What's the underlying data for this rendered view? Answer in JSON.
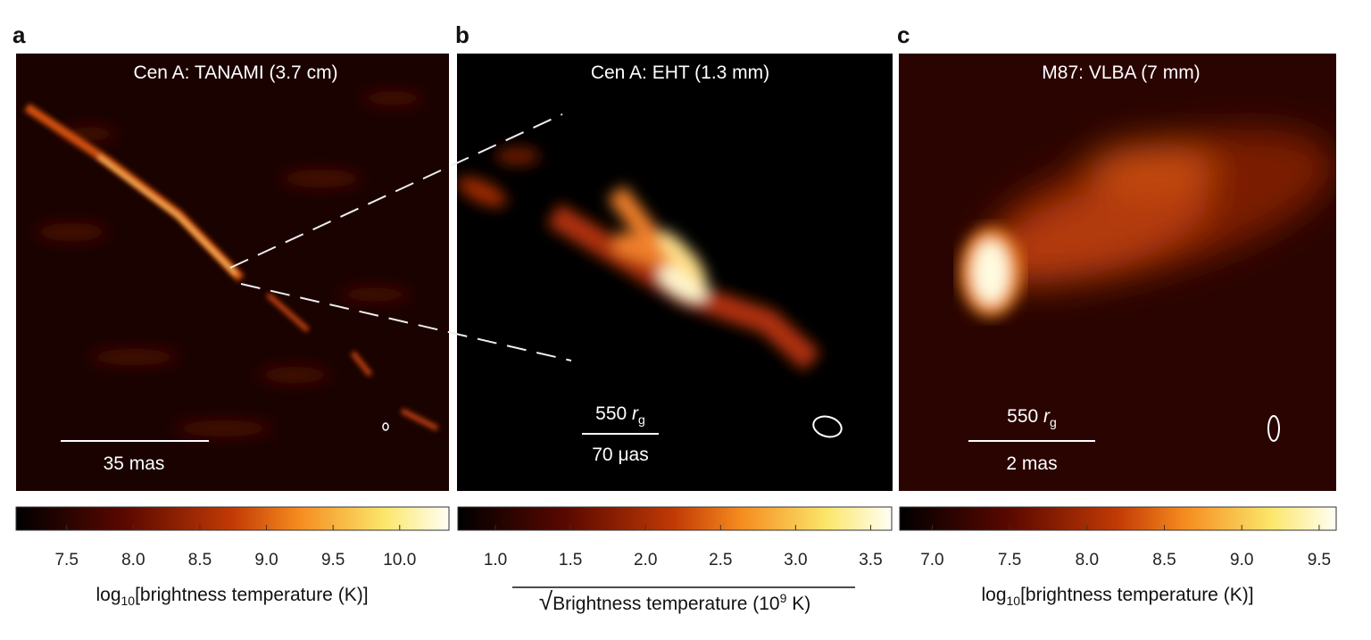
{
  "panels": [
    {
      "letter": "a",
      "title": "Cen A: TANAMI (3.7 cm)",
      "scale_bar": {
        "lower": "35 mas"
      },
      "colorbar": {
        "lim": [
          7.12,
          10.37
        ],
        "ticks": [
          7.5,
          {
            "value": 8,
            "label": "8.0"
          },
          8.5,
          {
            "value": 9,
            "label": "9.0"
          },
          9.5,
          {
            "value": 10,
            "label": "10.0"
          }
        ],
        "label": {
          "prefix": "log",
          "sub": "10",
          "text": "[brightness temperature (K)]"
        }
      }
    },
    {
      "letter": "b",
      "title": "Cen A: EHT (1.3 mm)",
      "scale_bar": {
        "upper_number": "550",
        "upper_symbol": "r",
        "upper_sub": "g",
        "lower": "70 μas"
      },
      "colorbar": {
        "lim": [
          0.75,
          3.64
        ],
        "ticks": [
          {
            "value": 1,
            "label": "1.0"
          },
          1.5,
          {
            "value": 2,
            "label": "2.0"
          },
          2.5,
          {
            "value": 3,
            "label": "3.0"
          },
          3.5
        ],
        "label": {
          "radical": "√",
          "text": "Brightness temperature (10",
          "sup": "9",
          "suffix": " K)"
        }
      }
    },
    {
      "letter": "c",
      "title": "M87: VLBA (7 mm)",
      "scale_bar": {
        "upper_number": "550",
        "upper_symbol": "r",
        "upper_sub": "g",
        "lower": "2 mas"
      },
      "colorbar": {
        "lim": [
          6.79,
          9.61
        ],
        "ticks": [
          {
            "value": 7,
            "label": "7.0"
          },
          7.5,
          {
            "value": 8,
            "label": "8.0"
          },
          8.5,
          {
            "value": 9,
            "label": "9.0"
          },
          9.5
        ],
        "label": {
          "prefix": "log",
          "sub": "10",
          "text": "[brightness temperature (K)]"
        }
      }
    }
  ]
}
